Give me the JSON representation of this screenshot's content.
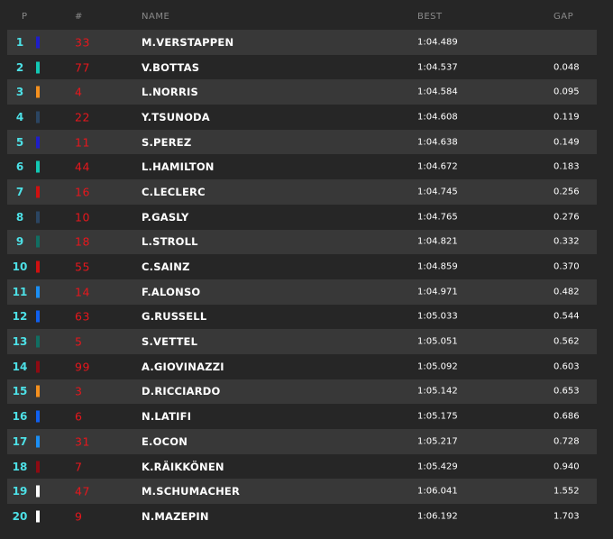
{
  "header": {
    "pos": "P",
    "num": "#",
    "name": "NAME",
    "best": "BEST",
    "gap": "GAP"
  },
  "rows": [
    {
      "pos": "1",
      "num": "33",
      "name": "M.VERSTAPPEN",
      "best": "1:04.489",
      "gap": "",
      "color": "#1e1ec8"
    },
    {
      "pos": "2",
      "num": "77",
      "name": "V.BOTTAS",
      "best": "1:04.537",
      "gap": "0.048",
      "color": "#12c8b4"
    },
    {
      "pos": "3",
      "num": "4",
      "name": "L.NORRIS",
      "best": "1:04.584",
      "gap": "0.095",
      "color": "#f5901e"
    },
    {
      "pos": "4",
      "num": "22",
      "name": "Y.TSUNODA",
      "best": "1:04.608",
      "gap": "0.119",
      "color": "#2b4562"
    },
    {
      "pos": "5",
      "num": "11",
      "name": "S.PEREZ",
      "best": "1:04.638",
      "gap": "0.149",
      "color": "#1e1ec8"
    },
    {
      "pos": "6",
      "num": "44",
      "name": "L.HAMILTON",
      "best": "1:04.672",
      "gap": "0.183",
      "color": "#12c8b4"
    },
    {
      "pos": "7",
      "num": "16",
      "name": "C.LECLERC",
      "best": "1:04.745",
      "gap": "0.256",
      "color": "#d01010"
    },
    {
      "pos": "8",
      "num": "10",
      "name": "P.GASLY",
      "best": "1:04.765",
      "gap": "0.276",
      "color": "#2b4562"
    },
    {
      "pos": "9",
      "num": "18",
      "name": "L.STROLL",
      "best": "1:04.821",
      "gap": "0.332",
      "color": "#116e62"
    },
    {
      "pos": "10",
      "num": "55",
      "name": "C.SAINZ",
      "best": "1:04.859",
      "gap": "0.370",
      "color": "#d01010"
    },
    {
      "pos": "11",
      "num": "14",
      "name": "F.ALONSO",
      "best": "1:04.971",
      "gap": "0.482",
      "color": "#1b8ff5"
    },
    {
      "pos": "12",
      "num": "63",
      "name": "G.RUSSELL",
      "best": "1:05.033",
      "gap": "0.544",
      "color": "#1060f0"
    },
    {
      "pos": "13",
      "num": "5",
      "name": "S.VETTEL",
      "best": "1:05.051",
      "gap": "0.562",
      "color": "#116e62"
    },
    {
      "pos": "14",
      "num": "99",
      "name": "A.GIOVINAZZI",
      "best": "1:05.092",
      "gap": "0.603",
      "color": "#8f0a12"
    },
    {
      "pos": "15",
      "num": "3",
      "name": "D.RICCIARDO",
      "best": "1:05.142",
      "gap": "0.653",
      "color": "#f5901e"
    },
    {
      "pos": "16",
      "num": "6",
      "name": "N.LATIFI",
      "best": "1:05.175",
      "gap": "0.686",
      "color": "#1060f0"
    },
    {
      "pos": "17",
      "num": "31",
      "name": "E.OCON",
      "best": "1:05.217",
      "gap": "0.728",
      "color": "#1b8ff5"
    },
    {
      "pos": "18",
      "num": "7",
      "name": "K.RÄIKKÖNEN",
      "best": "1:05.429",
      "gap": "0.940",
      "color": "#8f0a12"
    },
    {
      "pos": "19",
      "num": "47",
      "name": "M.SCHUMACHER",
      "best": "1:06.041",
      "gap": "1.552",
      "color": "#ffffff"
    },
    {
      "pos": "20",
      "num": "9",
      "name": "N.MAZEPIN",
      "best": "1:06.192",
      "gap": "1.703",
      "color": "#ffffff"
    }
  ]
}
